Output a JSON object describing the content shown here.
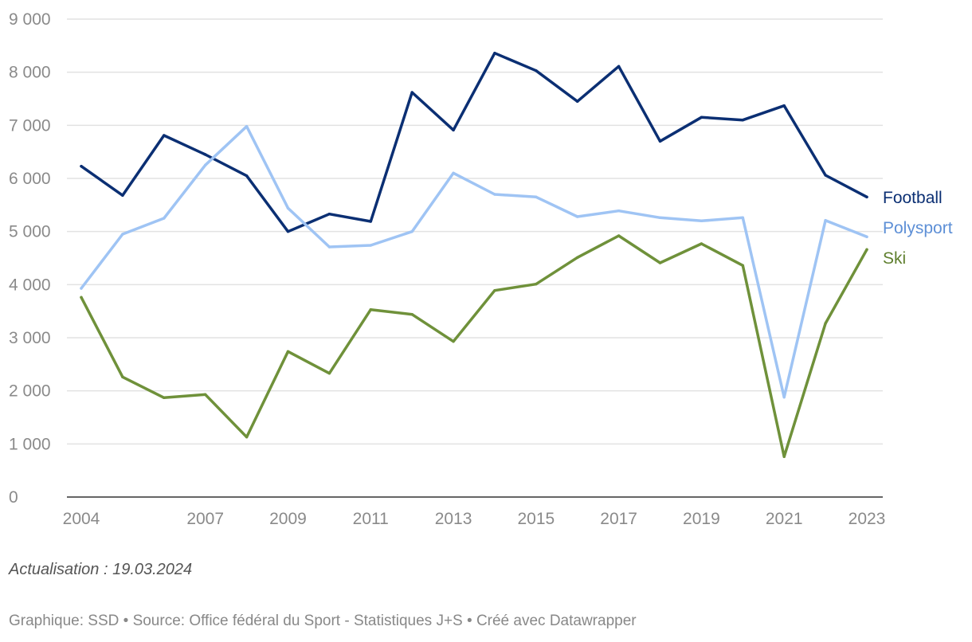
{
  "chart_data": {
    "type": "line",
    "x": [
      2004,
      2005,
      2006,
      2007,
      2008,
      2009,
      2010,
      2011,
      2012,
      2013,
      2014,
      2015,
      2016,
      2017,
      2018,
      2019,
      2020,
      2021,
      2022,
      2023
    ],
    "x_tick_labels": [
      "2004",
      "2007",
      "2009",
      "2011",
      "2013",
      "2015",
      "2017",
      "2019",
      "2021",
      "2023"
    ],
    "x_tick_values": [
      2004,
      2007,
      2009,
      2011,
      2013,
      2015,
      2017,
      2019,
      2021,
      2023
    ],
    "y_tick_labels": [
      "0",
      "1 000",
      "2 000",
      "3 000",
      "4 000",
      "5 000",
      "6 000",
      "7 000",
      "8 000",
      "9 000"
    ],
    "y_tick_values": [
      0,
      1000,
      2000,
      3000,
      4000,
      5000,
      6000,
      7000,
      8000,
      9000
    ],
    "ylim": [
      0,
      9000
    ],
    "xlim": [
      2004,
      2023
    ],
    "grid": true,
    "legend": "direct labels at right end of lines",
    "series": [
      {
        "name": "Football",
        "color": "#0b2f73",
        "label_color": "#0b2f73",
        "values": [
          6230,
          5680,
          6810,
          6450,
          6050,
          5000,
          5330,
          5190,
          7620,
          6910,
          8360,
          8030,
          7450,
          8110,
          6700,
          7150,
          7100,
          7370,
          6060,
          5650
        ]
      },
      {
        "name": "Polysport",
        "color": "#9fc4f4",
        "label_color": "#5d8fd6",
        "values": [
          3930,
          4950,
          5250,
          6250,
          6980,
          5440,
          4710,
          4740,
          5000,
          6100,
          5700,
          5650,
          5280,
          5390,
          5260,
          5200,
          5260,
          1880,
          5210,
          4900
        ]
      },
      {
        "name": "Ski",
        "color": "#6f913a",
        "label_color": "#5f7f2e",
        "values": [
          3760,
          2260,
          1870,
          1930,
          1130,
          2740,
          2330,
          3530,
          3440,
          2930,
          3890,
          4010,
          4510,
          4920,
          4410,
          4770,
          4360,
          760,
          3270,
          4660
        ]
      }
    ]
  },
  "note": "Actualisation : 19.03.2024",
  "footer": "Graphique: SSD • Source: Office fédéral du Sport - Statistiques J+S • Créé avec Datawrapper"
}
